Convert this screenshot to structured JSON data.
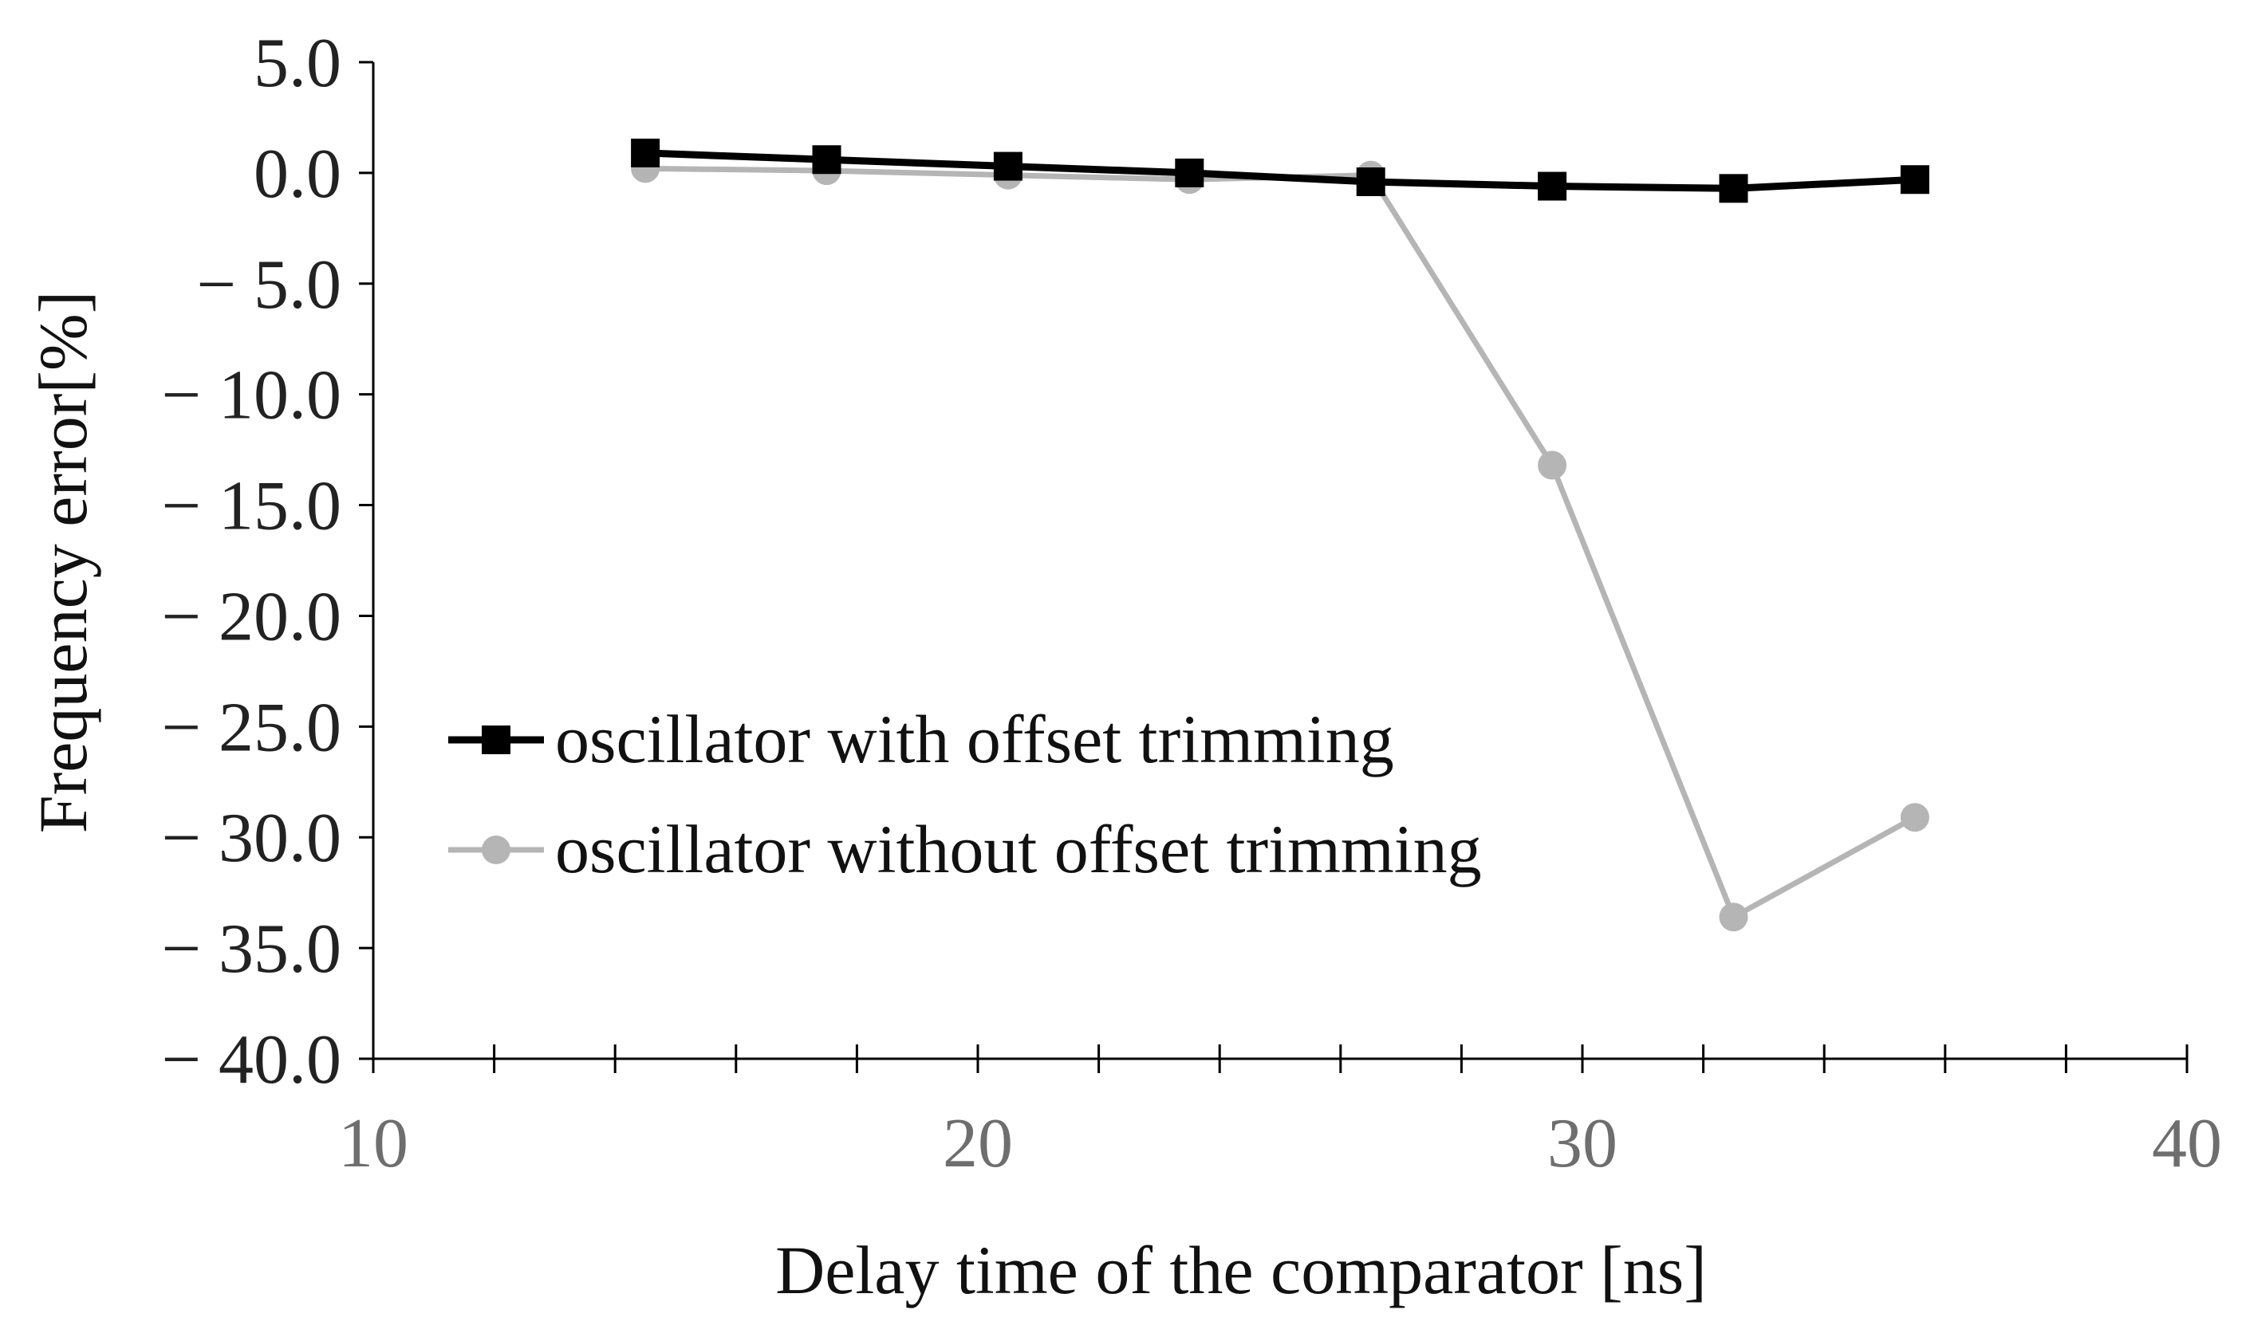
{
  "chart_data": {
    "type": "line",
    "title": "",
    "xlabel": "Delay time of the comparator [ns]",
    "ylabel": "Frequency error[%]",
    "xlim": [
      10,
      40
    ],
    "ylim": [
      -40,
      5
    ],
    "x_ticks": [
      10,
      20,
      30,
      40
    ],
    "x_tick_labels": [
      "10",
      "20",
      "30",
      "40"
    ],
    "x_minor_step": 2,
    "y_ticks": [
      5,
      0,
      -5,
      -10,
      -15,
      -20,
      -25,
      -30,
      -35,
      -40
    ],
    "y_tick_labels": [
      "5.0",
      "0.0",
      "− 5.0",
      "− 10.0",
      "− 15.0",
      "− 20.0",
      "− 25.0",
      "− 30.0",
      "− 35.0",
      "− 40.0"
    ],
    "grid": false,
    "legend_position": "center-left",
    "series": [
      {
        "name": "oscillator with offset trimming",
        "color": "#000000",
        "marker": "square",
        "x": [
          14.5,
          17.5,
          20.5,
          23.5,
          26.5,
          29.5,
          32.5,
          35.5
        ],
        "y": [
          0.9,
          0.6,
          0.3,
          0.0,
          -0.4,
          -0.6,
          -0.7,
          -0.3
        ]
      },
      {
        "name": "oscillator without offset trimming",
        "color": "#b5b5b5",
        "marker": "circle",
        "x": [
          14.5,
          17.5,
          20.5,
          23.5,
          26.5,
          29.5,
          32.5,
          35.5
        ],
        "y": [
          0.2,
          0.1,
          -0.1,
          -0.3,
          -0.1,
          -13.2,
          -33.6,
          -29.1
        ]
      }
    ]
  }
}
